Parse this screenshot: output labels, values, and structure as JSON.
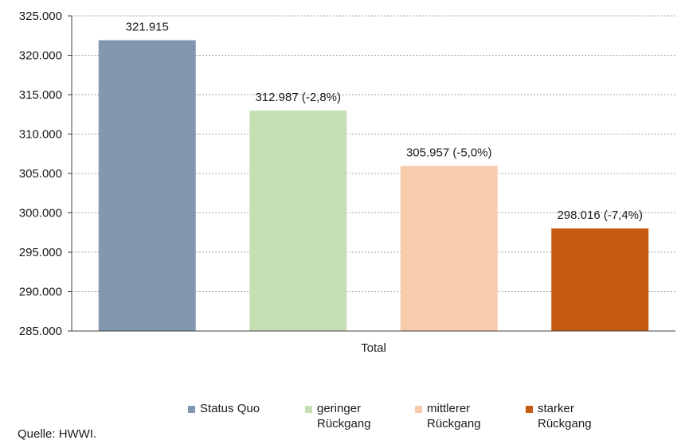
{
  "chart_data": {
    "type": "bar",
    "categories": [
      "Total"
    ],
    "series": [
      {
        "name": "Status Quo",
        "value": 321915,
        "label": "321.915",
        "color": "#8497b0"
      },
      {
        "name": "geringer\nRückgang",
        "value": 312987,
        "label": "312.987 (-2,8%)",
        "color": "#c5e0b4"
      },
      {
        "name": "mittlerer\nRückgang",
        "value": 305957,
        "label": "305.957 (-5,0%)",
        "color": "#f8cbad"
      },
      {
        "name": "starker\nRückgang",
        "value": 298016,
        "label": "298.016 (-7,4%)",
        "color": "#c55a11"
      }
    ],
    "ylim": [
      285000,
      325000
    ],
    "yticks": [
      285000,
      290000,
      295000,
      300000,
      305000,
      310000,
      315000,
      320000,
      325000
    ],
    "ytick_labels": [
      "285.000",
      "290.000",
      "295.000",
      "300.000",
      "305.000",
      "310.000",
      "315.000",
      "320.000",
      "325.000"
    ],
    "grid": true,
    "legend_position": "bottom"
  },
  "source": "Quelle: HWWI."
}
